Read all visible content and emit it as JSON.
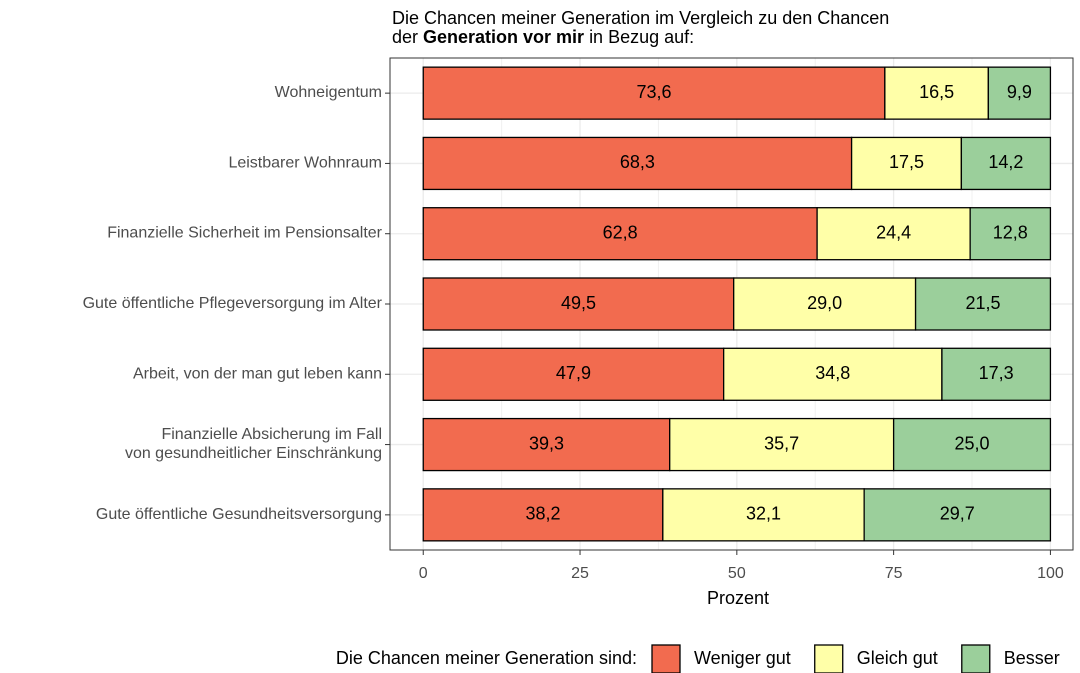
{
  "chart_data": {
    "type": "stacked_barh",
    "title": {
      "line1": "Die Chancen meiner Generation im Vergleich zu den Chancen",
      "line2_start": "der",
      "line2_bold": "Generation vor mir",
      "line2_end": "in Bezug auf:"
    },
    "categories": [
      "Wohneigentum",
      "Leistbarer Wohnraum",
      "Finanzielle Sicherheit im Pensionsalter",
      "Gute öffentliche Pflegeversorgung im Alter",
      "Arbeit, von der man gut leben kann",
      "Finanzielle Absicherung im Fall\nvon gesundheitlicher Einschränkung",
      "Gute öffentliche Gesundheitsversorgung"
    ],
    "series": [
      {
        "name": "Weniger gut",
        "color": "#f26b4f",
        "values": [
          73.6,
          68.3,
          62.8,
          49.5,
          47.9,
          39.3,
          38.2
        ],
        "value_labels": [
          "73,6",
          "68,3",
          "62,8",
          "49,5",
          "47,9",
          "39,3",
          "38,2"
        ]
      },
      {
        "name": "Gleich gut",
        "color": "#ffffa8",
        "values": [
          16.5,
          17.5,
          24.4,
          29.0,
          34.8,
          35.7,
          32.1
        ],
        "value_labels": [
          "16,5",
          "17,5",
          "24,4",
          "29,0",
          "34,8",
          "35,7",
          "32,1"
        ]
      },
      {
        "name": "Besser",
        "color": "#9bcf9b",
        "values": [
          9.9,
          14.2,
          12.8,
          21.5,
          17.3,
          25.0,
          29.7
        ],
        "value_labels": [
          "9,9",
          "14,2",
          "12,8",
          "21,5",
          "17,3",
          "25,0",
          "29,7"
        ]
      }
    ],
    "xlabel": "Prozent",
    "xlim": [
      -5.3,
      103.6
    ],
    "xticks": [
      0,
      25,
      50,
      75,
      100
    ],
    "xminor": [
      12.5,
      37.5,
      62.5,
      87.5
    ],
    "grid": true,
    "legend_title": "Die Chancen meiner Generation sind:",
    "legend_position": "bottom"
  }
}
